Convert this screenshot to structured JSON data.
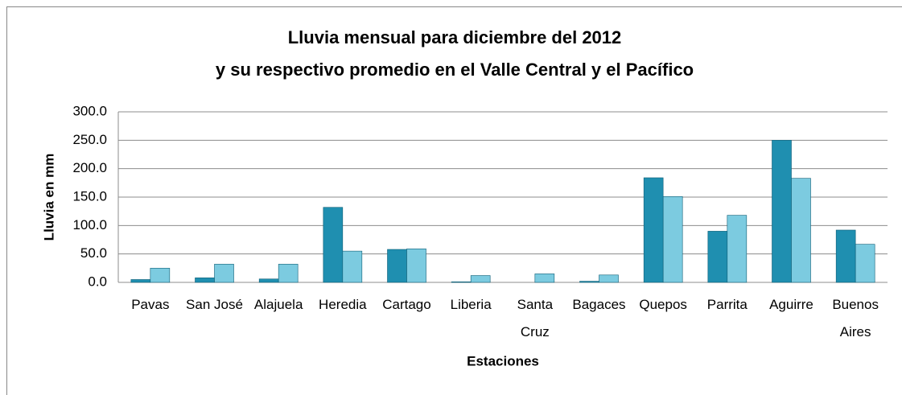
{
  "chart_data": {
    "type": "bar",
    "title": [
      "Lluvia mensual para diciembre del 2012",
      "y su respectivo promedio en el Valle Central y el Pacífico"
    ],
    "x_label": "Estaciones",
    "y_label": "Lluvia en mm",
    "categories": [
      "Pavas",
      "San José",
      "Alajuela",
      "Heredia",
      "Cartago",
      "Liberia",
      "Santa Cruz",
      "Bagaces",
      "Quepos",
      "Parrita",
      "Aguirre",
      "Buenos Aires"
    ],
    "series": [
      {
        "color": "#1f8fb0",
        "values": [
          5,
          8,
          6,
          132,
          58,
          1,
          0,
          2,
          184,
          90,
          250,
          92
        ]
      },
      {
        "color": "#7ccbe0",
        "values": [
          25,
          32,
          32,
          55,
          59,
          12,
          15,
          13,
          151,
          118,
          183,
          67
        ]
      }
    ],
    "ylim": [
      0,
      300
    ],
    "yticks": [
      {
        "value": 0,
        "label": "0.0"
      },
      {
        "value": 50,
        "label": "50.0"
      },
      {
        "value": 100,
        "label": "100.0"
      },
      {
        "value": 150,
        "label": "150.0"
      },
      {
        "value": 200,
        "label": "200.0"
      },
      {
        "value": 250,
        "label": "250.0"
      },
      {
        "value": 300,
        "label": "300.0"
      }
    ],
    "grid": true
  }
}
